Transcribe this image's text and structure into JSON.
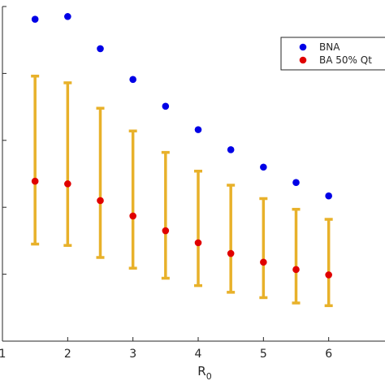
{
  "chart_data": {
    "type": "scatter",
    "title": "",
    "xlabel": "R",
    "xlabel_subscript": "0",
    "ylabel": "",
    "xlim": [
      1,
      7
    ],
    "ylim": [
      0,
      1
    ],
    "xticks": [
      1,
      2,
      3,
      4,
      5,
      6
    ],
    "xtick_labels": [
      "1",
      "2",
      "3",
      "4",
      "5",
      "6"
    ],
    "yticks": [
      0.2,
      0.4,
      0.6,
      0.8,
      1.0
    ],
    "grid": false,
    "legend_position": "top-right",
    "series": [
      {
        "name": "BNA",
        "color": "#0000e6",
        "x": [
          1.5,
          2,
          2.5,
          3,
          3.5,
          4,
          4.5,
          5,
          5.5,
          6
        ],
        "y": [
          0.962,
          0.97,
          0.874,
          0.782,
          0.702,
          0.632,
          0.572,
          0.52,
          0.474,
          0.434
        ]
      },
      {
        "name": "BA 50% Qt",
        "color": "#e00000",
        "x": [
          1.5,
          2,
          2.5,
          3,
          3.5,
          4,
          4.5,
          5,
          5.5,
          6
        ],
        "y": [
          0.478,
          0.47,
          0.42,
          0.374,
          0.33,
          0.294,
          0.262,
          0.236,
          0.214,
          0.198
        ],
        "error_color": "#e8b12a",
        "lower": [
          0.29,
          0.286,
          0.25,
          0.218,
          0.188,
          0.166,
          0.146,
          0.13,
          0.114,
          0.106
        ],
        "upper": [
          0.792,
          0.772,
          0.696,
          0.628,
          0.564,
          0.508,
          0.466,
          0.426,
          0.394,
          0.364
        ]
      }
    ]
  }
}
